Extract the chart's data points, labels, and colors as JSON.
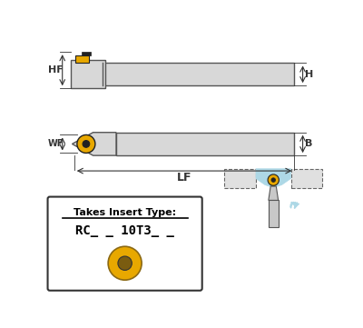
{
  "bg_color": "#ffffff",
  "tool_color": "#d8d8d8",
  "tool_edge": "#555555",
  "insert_yellow": "#e8a800",
  "insert_dark": "#222222",
  "dim_color": "#333333",
  "blue_light": "#add8e6",
  "label_HF": "HF",
  "label_H": "H",
  "label_WF": "WF",
  "label_B": "B",
  "label_LF": "LF",
  "insert_text1": "Takes Insert Type:",
  "insert_text2": "RC_ _ 10T3_ _"
}
